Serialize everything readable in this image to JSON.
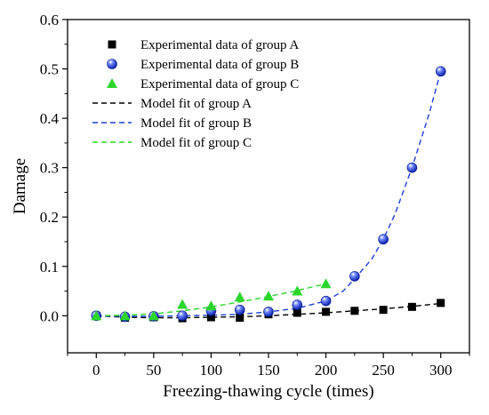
{
  "chart_data": {
    "type": "scatter",
    "title": "",
    "xlabel": "Freezing-thawing cycle (times)",
    "ylabel": "Damage",
    "xlim": [
      -25,
      325
    ],
    "ylim": [
      -0.075,
      0.6
    ],
    "xticks": [
      0,
      50,
      100,
      150,
      200,
      250,
      300
    ],
    "xtick_labels": [
      "0",
      "50",
      "100",
      "150",
      "200",
      "250",
      "300"
    ],
    "yticks": [
      0.0,
      0.1,
      0.2,
      0.3,
      0.4,
      0.5,
      0.6
    ],
    "ytick_labels": [
      "0.0",
      "0.1",
      "0.2",
      "0.3",
      "0.4",
      "0.5",
      "0.6"
    ],
    "grid": false,
    "legend_position": "top-left",
    "series": [
      {
        "name": "Experimental data of group A",
        "kind": "scatter",
        "marker": "square",
        "color": "#000000",
        "x": [
          0,
          25,
          50,
          75,
          100,
          125,
          150,
          175,
          200,
          225,
          250,
          275,
          300
        ],
        "y": [
          0.0,
          -0.004,
          -0.003,
          -0.005,
          -0.003,
          -0.004,
          0.003,
          0.006,
          0.008,
          0.01,
          0.012,
          0.018,
          0.026
        ]
      },
      {
        "name": "Experimental data of group B",
        "kind": "scatter",
        "marker": "sphere",
        "color": "#1f3fd8",
        "x": [
          0,
          25,
          50,
          75,
          100,
          125,
          150,
          175,
          200,
          225,
          250,
          275,
          300
        ],
        "y": [
          0.0,
          -0.002,
          -0.001,
          0.0,
          0.01,
          0.012,
          0.008,
          0.022,
          0.03,
          0.08,
          0.155,
          0.3,
          0.495
        ]
      },
      {
        "name": "Experimental data of group C",
        "kind": "scatter",
        "marker": "triangle",
        "color": "#2bd62b",
        "x": [
          0,
          25,
          50,
          75,
          100,
          125,
          150,
          175,
          200
        ],
        "y": [
          0.0,
          0.0,
          0.0,
          0.023,
          0.02,
          0.038,
          0.04,
          0.05,
          0.065
        ]
      },
      {
        "name": "Model fit of group A",
        "kind": "line",
        "dash": true,
        "color": "#000000",
        "x": [
          0,
          25,
          50,
          75,
          100,
          125,
          150,
          175,
          200,
          225,
          250,
          275,
          300
        ],
        "y": [
          0.0,
          -0.003,
          -0.004,
          -0.004,
          -0.003,
          -0.002,
          0.0,
          0.003,
          0.006,
          0.01,
          0.014,
          0.019,
          0.025
        ]
      },
      {
        "name": "Model fit of group B",
        "kind": "line",
        "dash": true,
        "color": "#1f3fd8",
        "x": [
          0,
          25,
          50,
          75,
          100,
          125,
          150,
          175,
          200,
          215,
          225,
          240,
          250,
          260,
          275,
          290,
          300
        ],
        "y": [
          0.0,
          -0.001,
          -0.001,
          0.0,
          0.001,
          0.003,
          0.008,
          0.015,
          0.03,
          0.05,
          0.075,
          0.115,
          0.155,
          0.205,
          0.3,
          0.41,
          0.495
        ]
      },
      {
        "name": "Model fit of group C",
        "kind": "line",
        "dash": true,
        "color": "#2bd62b",
        "x": [
          0,
          25,
          50,
          75,
          100,
          125,
          150,
          175,
          200
        ],
        "y": [
          0.0,
          0.001,
          0.004,
          0.01,
          0.018,
          0.028,
          0.039,
          0.051,
          0.065
        ]
      }
    ]
  }
}
